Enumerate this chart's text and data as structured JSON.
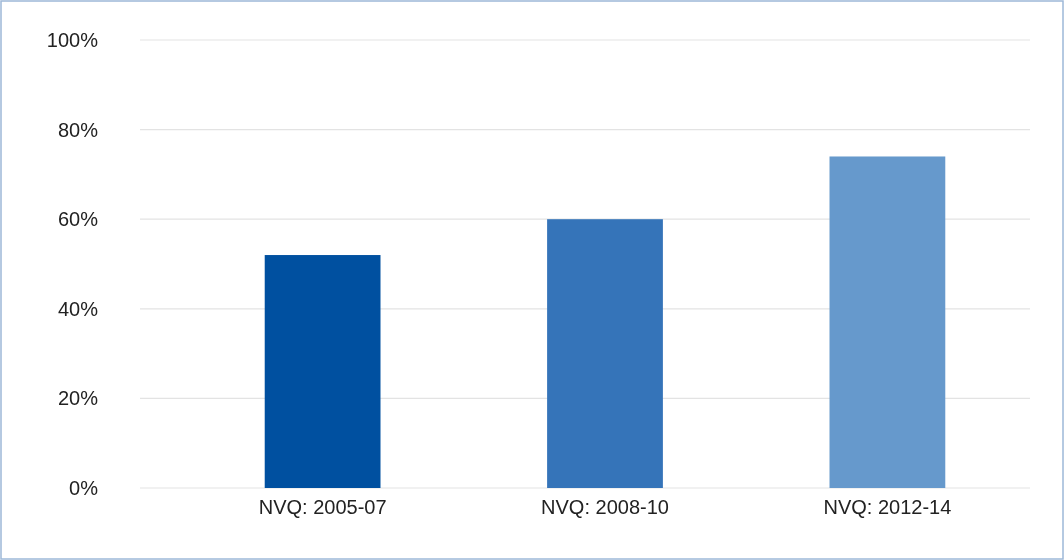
{
  "chart_data": {
    "type": "bar",
    "categories": [
      "NVQ: 2005-07",
      "NVQ: 2008-10",
      "NVQ: 2012-14"
    ],
    "values": [
      52,
      60,
      74
    ],
    "colors": [
      "#0050a0",
      "#3574b9",
      "#6699cc"
    ],
    "ylim": [
      0,
      100
    ],
    "yticks": [
      {
        "value": 0,
        "label": "0%"
      },
      {
        "value": 20,
        "label": "20%"
      },
      {
        "value": 40,
        "label": "40%"
      },
      {
        "value": 60,
        "label": "60%"
      },
      {
        "value": 80,
        "label": "80%"
      },
      {
        "value": 100,
        "label": "100%"
      }
    ],
    "grid": "y"
  }
}
